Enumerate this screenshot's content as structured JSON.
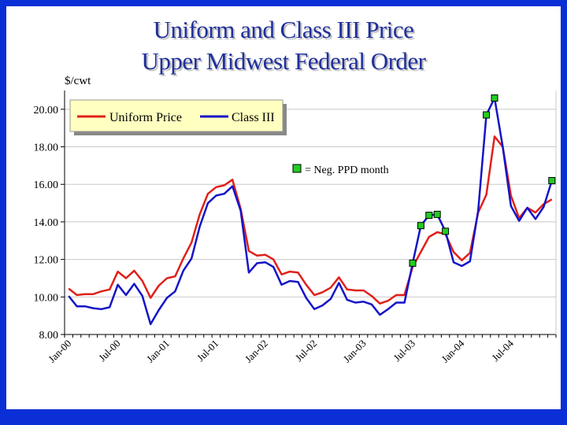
{
  "chart_data": {
    "type": "line",
    "title": "Uniform and Class III Price",
    "subtitle": "Upper Midwest Federal Order",
    "ylabel": "$/cwt",
    "ylim": [
      8,
      21
    ],
    "yticks": [
      "8.00",
      "10.00",
      "12.00",
      "14.00",
      "16.00",
      "18.00",
      "20.00"
    ],
    "xtick_labels": [
      "Jan-00",
      "Jul-00",
      "Jan-01",
      "Jul-01",
      "Jan-02",
      "Jul-02",
      "Jan-03",
      "Jul-03",
      "Jan-04",
      "Jul-04"
    ],
    "x_months": 60,
    "series": [
      {
        "name": "Uniform Price",
        "color": "#e0201a",
        "values": [
          10.45,
          10.1,
          10.15,
          10.15,
          10.3,
          10.4,
          11.35,
          11.0,
          11.4,
          10.85,
          9.95,
          10.6,
          11.0,
          11.1,
          12.05,
          12.9,
          14.4,
          15.5,
          15.85,
          15.95,
          16.25,
          14.7,
          12.45,
          12.2,
          12.25,
          12.0,
          11.2,
          11.35,
          11.3,
          10.65,
          10.1,
          10.25,
          10.5,
          11.05,
          10.4,
          10.35,
          10.35,
          10.05,
          9.65,
          9.8,
          10.1,
          10.1,
          11.6,
          12.4,
          13.2,
          13.45,
          13.35,
          12.4,
          11.95,
          12.35,
          14.5,
          15.45,
          18.55,
          18.0,
          15.4,
          14.2,
          14.75,
          14.5,
          14.95,
          15.2
        ]
      },
      {
        "name": "Class III",
        "color": "#1414c8",
        "values": [
          10.05,
          9.5,
          9.5,
          9.4,
          9.35,
          9.45,
          10.65,
          10.1,
          10.7,
          10.05,
          8.55,
          9.3,
          9.95,
          10.3,
          11.4,
          12.05,
          13.75,
          15.0,
          15.4,
          15.5,
          15.9,
          14.6,
          11.3,
          11.8,
          11.85,
          11.6,
          10.65,
          10.85,
          10.8,
          9.95,
          9.35,
          9.55,
          9.9,
          10.75,
          9.85,
          9.7,
          9.75,
          9.6,
          9.05,
          9.35,
          9.7,
          9.7,
          11.8,
          13.8,
          14.35,
          14.4,
          13.5,
          11.85,
          11.65,
          11.9,
          14.6,
          19.7,
          20.6,
          18.0,
          14.85,
          14.05,
          14.75,
          14.15,
          14.8,
          16.2
        ]
      }
    ],
    "markers": {
      "label": "= Neg. PPD month",
      "color": "#22cc22",
      "series": "Class III",
      "indices": [
        42,
        43,
        44,
        45,
        46,
        51,
        52,
        59
      ]
    },
    "legend": {
      "position": "top-left",
      "entries": [
        "Uniform Price",
        "Class III"
      ],
      "background": "#ffffc0"
    }
  }
}
